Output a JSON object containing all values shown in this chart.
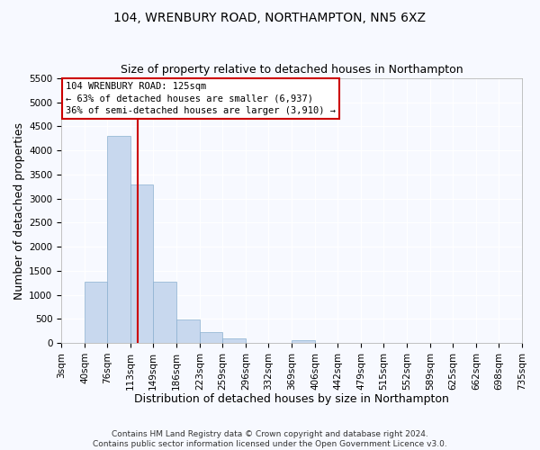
{
  "title_line1": "104, WRENBURY ROAD, NORTHAMPTON, NN5 6XZ",
  "title_line2": "Size of property relative to detached houses in Northampton",
  "xlabel": "Distribution of detached houses by size in Northampton",
  "ylabel": "Number of detached properties",
  "bar_color": "#c8d8ee",
  "bar_edgecolor": "#8ab0d0",
  "bin_edges": [
    3,
    40,
    76,
    113,
    149,
    186,
    223,
    259,
    296,
    332,
    369,
    406,
    442,
    479,
    515,
    552,
    589,
    625,
    662,
    698,
    735
  ],
  "bin_labels": [
    "3sqm",
    "40sqm",
    "76sqm",
    "113sqm",
    "149sqm",
    "186sqm",
    "223sqm",
    "259sqm",
    "296sqm",
    "332sqm",
    "369sqm",
    "406sqm",
    "442sqm",
    "479sqm",
    "515sqm",
    "552sqm",
    "589sqm",
    "625sqm",
    "662sqm",
    "698sqm",
    "735sqm"
  ],
  "bar_heights": [
    0,
    1270,
    4300,
    3300,
    1270,
    480,
    230,
    100,
    0,
    0,
    60,
    0,
    0,
    0,
    0,
    0,
    0,
    0,
    0,
    0
  ],
  "property_size": 125,
  "red_line_color": "#cc0000",
  "ylim": [
    0,
    5500
  ],
  "yticks": [
    0,
    500,
    1000,
    1500,
    2000,
    2500,
    3000,
    3500,
    4000,
    4500,
    5000,
    5500
  ],
  "annotation_title": "104 WRENBURY ROAD: 125sqm",
  "annotation_line2": "← 63% of detached houses are smaller (6,937)",
  "annotation_line3": "36% of semi-detached houses are larger (3,910) →",
  "annotation_box_color": "#ffffff",
  "annotation_box_edgecolor": "#cc0000",
  "footer_line1": "Contains HM Land Registry data © Crown copyright and database right 2024.",
  "footer_line2": "Contains public sector information licensed under the Open Government Licence v3.0.",
  "background_color": "#f7f9ff",
  "grid_color": "#ffffff",
  "title_fontsize": 10,
  "subtitle_fontsize": 9,
  "axis_label_fontsize": 9,
  "tick_fontsize": 7.5,
  "footer_fontsize": 6.5
}
